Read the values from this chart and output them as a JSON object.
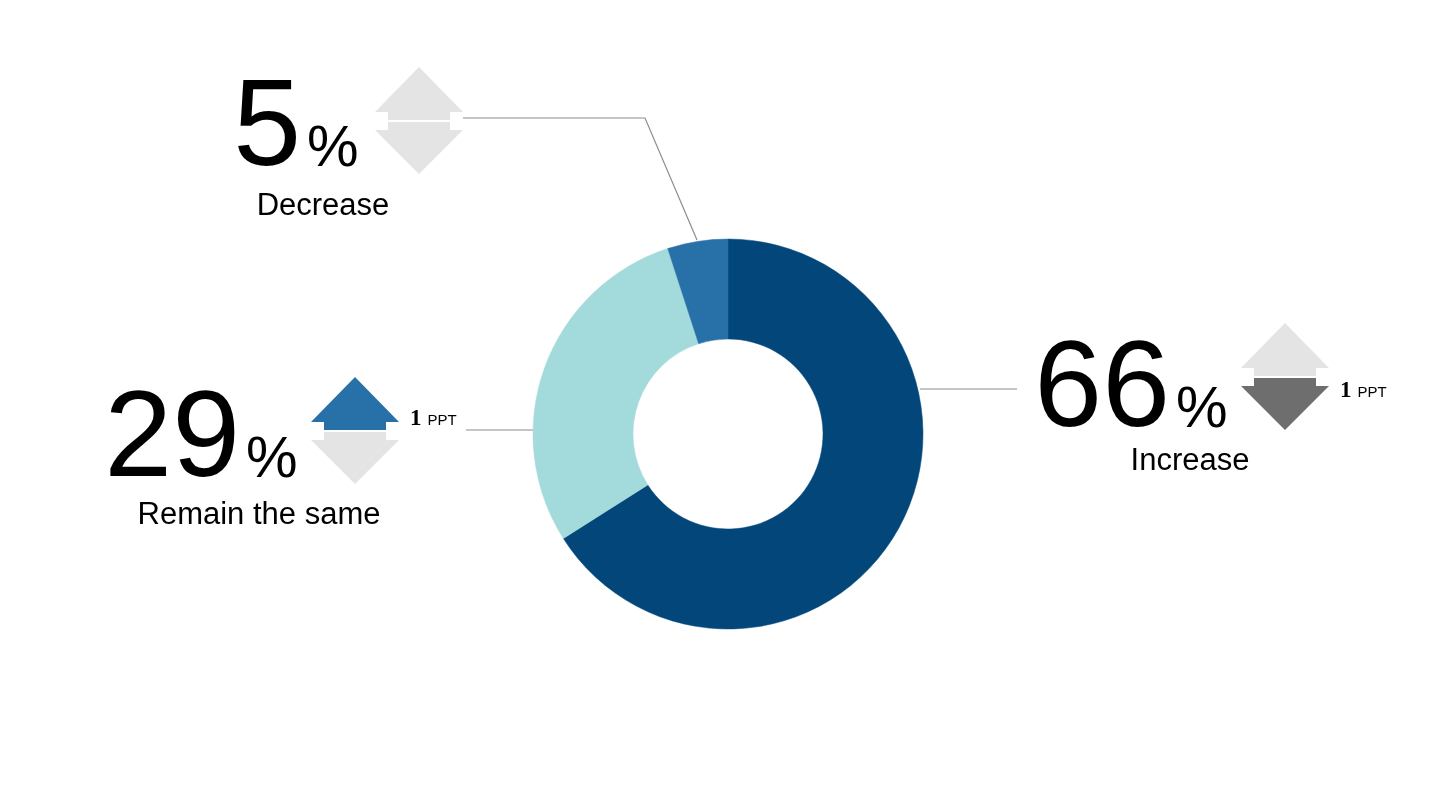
{
  "chart_data": {
    "type": "donut",
    "categories": [
      "Increase",
      "Remain the same",
      "Decrease"
    ],
    "values": [
      66,
      29,
      5
    ],
    "colors": [
      "#03477a",
      "#a3dadb",
      "#2870a8"
    ],
    "value_labels": [
      "66%",
      "29%",
      "5%"
    ],
    "annotations": [
      "1 PPT",
      "1 PPT"
    ]
  }
}
